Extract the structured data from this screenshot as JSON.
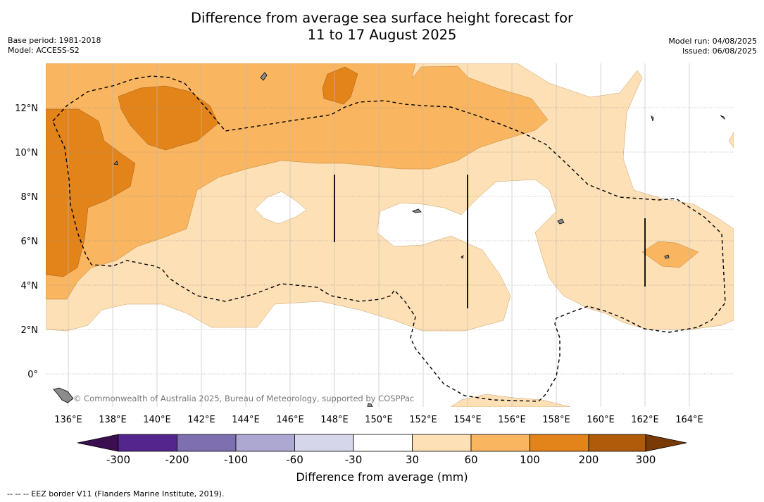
{
  "title": {
    "line1": "Difference from average sea surface height forecast for",
    "line2": "11 to 17 August 2025"
  },
  "meta_left": {
    "base_period": "Base period: 1981-2018",
    "model": "Model: ACCESS-S2"
  },
  "meta_right": {
    "model_run": "Model run: 04/08/2025",
    "issued": "Issued: 06/08/2025"
  },
  "map": {
    "lat_labels": [
      "12°N",
      "10°N",
      "8°N",
      "6°N",
      "4°N",
      "2°N",
      "0°"
    ],
    "lon_labels": [
      "136°E",
      "138°E",
      "140°E",
      "142°E",
      "144°E",
      "146°E",
      "148°E",
      "150°E",
      "152°E",
      "154°E",
      "156°E",
      "158°E",
      "160°E",
      "162°E",
      "164°E"
    ],
    "copyright": "© Commonwealth of Australia 2025, Bureau of Meteorology, supported by COSPPac",
    "colors": {
      "band_30_60": "#fde0b6",
      "band_60_100": "#f9b55f",
      "band_100_200": "#e3841b",
      "land": "#8c8c8c"
    }
  },
  "colorbar": {
    "title": "Difference from average (mm)",
    "labels": [
      "-300",
      "-200",
      "-100",
      "-60",
      "-30",
      "30",
      "60",
      "100",
      "200",
      "300"
    ],
    "colors": [
      "#3b0f4f",
      "#54258d",
      "#7e6fb0",
      "#aca8d2",
      "#d6d6ea",
      "#ffffff",
      "#fde0b6",
      "#f9b55f",
      "#e3841b",
      "#b05b0a",
      "#7a3a06"
    ]
  },
  "footnote": "-- -- -- EEZ border V11 (Flanders Marine Institute, 2019)."
}
